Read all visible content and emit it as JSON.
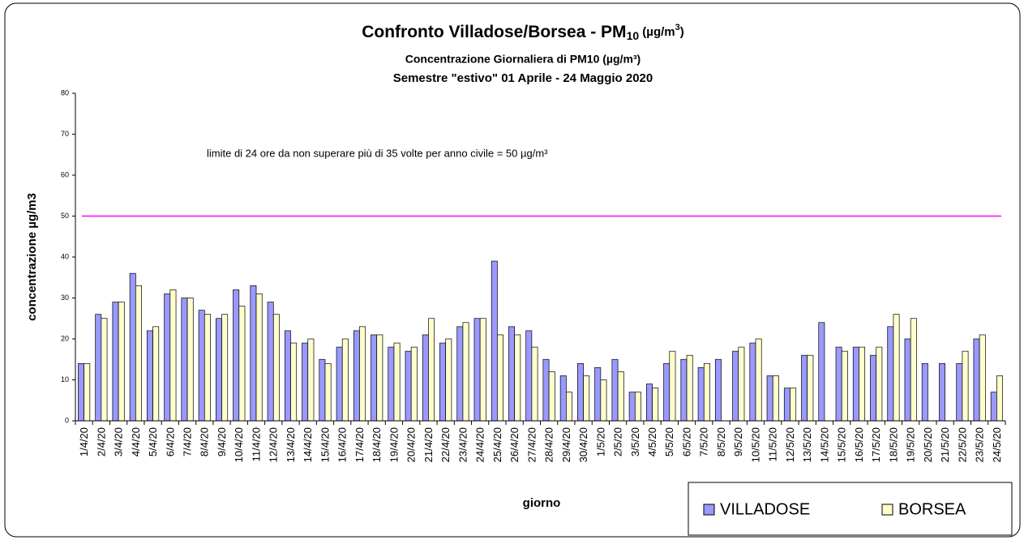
{
  "chart_data": {
    "type": "bar",
    "title": {
      "main": "Confronto Villadose/Borsea - PM",
      "sub": "10",
      "unit": " (µg/m",
      "sup": "3",
      "close": ")"
    },
    "subtitle": "Concentrazione Giornaliera di PM10 (µg/m³)",
    "subtitle2": "Semestre \"estivo\" 01 Aprile - 24 Maggio 2020",
    "annotation": "limite di 24 ore da non superare più di 35 volte per anno civile = 50 µg/m³",
    "y_label": "concentrazione µg/m3",
    "x_label": "giorno",
    "limit": 50,
    "limit_color": "#ff00ff",
    "categories": [
      "1/4/20",
      "2/4/20",
      "3/4/20",
      "4/4/20",
      "5/4/20",
      "6/4/20",
      "7/4/20",
      "8/4/20",
      "9/4/20",
      "10/4/20",
      "11/4/20",
      "12/4/20",
      "13/4/20",
      "14/4/20",
      "15/4/20",
      "16/4/20",
      "17/4/20",
      "18/4/20",
      "19/4/20",
      "20/4/20",
      "21/4/20",
      "22/4/20",
      "23/4/20",
      "24/4/20",
      "25/4/20",
      "26/4/20",
      "27/4/20",
      "28/4/20",
      "29/4/20",
      "30/4/20",
      "1/5/20",
      "2/5/20",
      "3/5/20",
      "4/5/20",
      "5/5/20",
      "6/5/20",
      "7/5/20",
      "8/5/20",
      "9/5/20",
      "10/5/20",
      "11/5/20",
      "12/5/20",
      "13/5/20",
      "14/5/20",
      "15/5/20",
      "16/5/20",
      "17/5/20",
      "18/5/20",
      "19/5/20",
      "20/5/20",
      "21/5/20",
      "22/5/20",
      "23/5/20",
      "24/5/20"
    ],
    "series": [
      {
        "name": "VILLADOSE",
        "color": "#9999ff",
        "values": [
          14,
          26,
          29,
          36,
          22,
          31,
          30,
          27,
          25,
          32,
          33,
          29,
          22,
          19,
          15,
          18,
          22,
          21,
          18,
          17,
          21,
          19,
          23,
          25,
          39,
          23,
          22,
          15,
          11,
          14,
          13,
          15,
          7,
          9,
          14,
          15,
          13,
          15,
          17,
          19,
          11,
          8,
          16,
          24,
          18,
          18,
          16,
          23,
          20,
          14,
          14,
          14,
          20,
          7
        ]
      },
      {
        "name": "BORSEA",
        "color": "#ffffcc",
        "values": [
          14,
          25,
          29,
          33,
          23,
          32,
          30,
          26,
          26,
          28,
          31,
          26,
          19,
          20,
          14,
          20,
          23,
          21,
          19,
          18,
          25,
          20,
          24,
          25,
          21,
          21,
          18,
          12,
          7,
          11,
          10,
          12,
          7,
          8,
          17,
          16,
          14,
          null,
          18,
          20,
          11,
          8,
          16,
          null,
          17,
          18,
          18,
          26,
          25,
          null,
          null,
          17,
          21,
          11
        ]
      }
    ],
    "ylim": [
      0,
      80
    ],
    "yticks": [
      0,
      10,
      20,
      30,
      40,
      50,
      60,
      70,
      80
    ],
    "legend": "bottom-right"
  }
}
